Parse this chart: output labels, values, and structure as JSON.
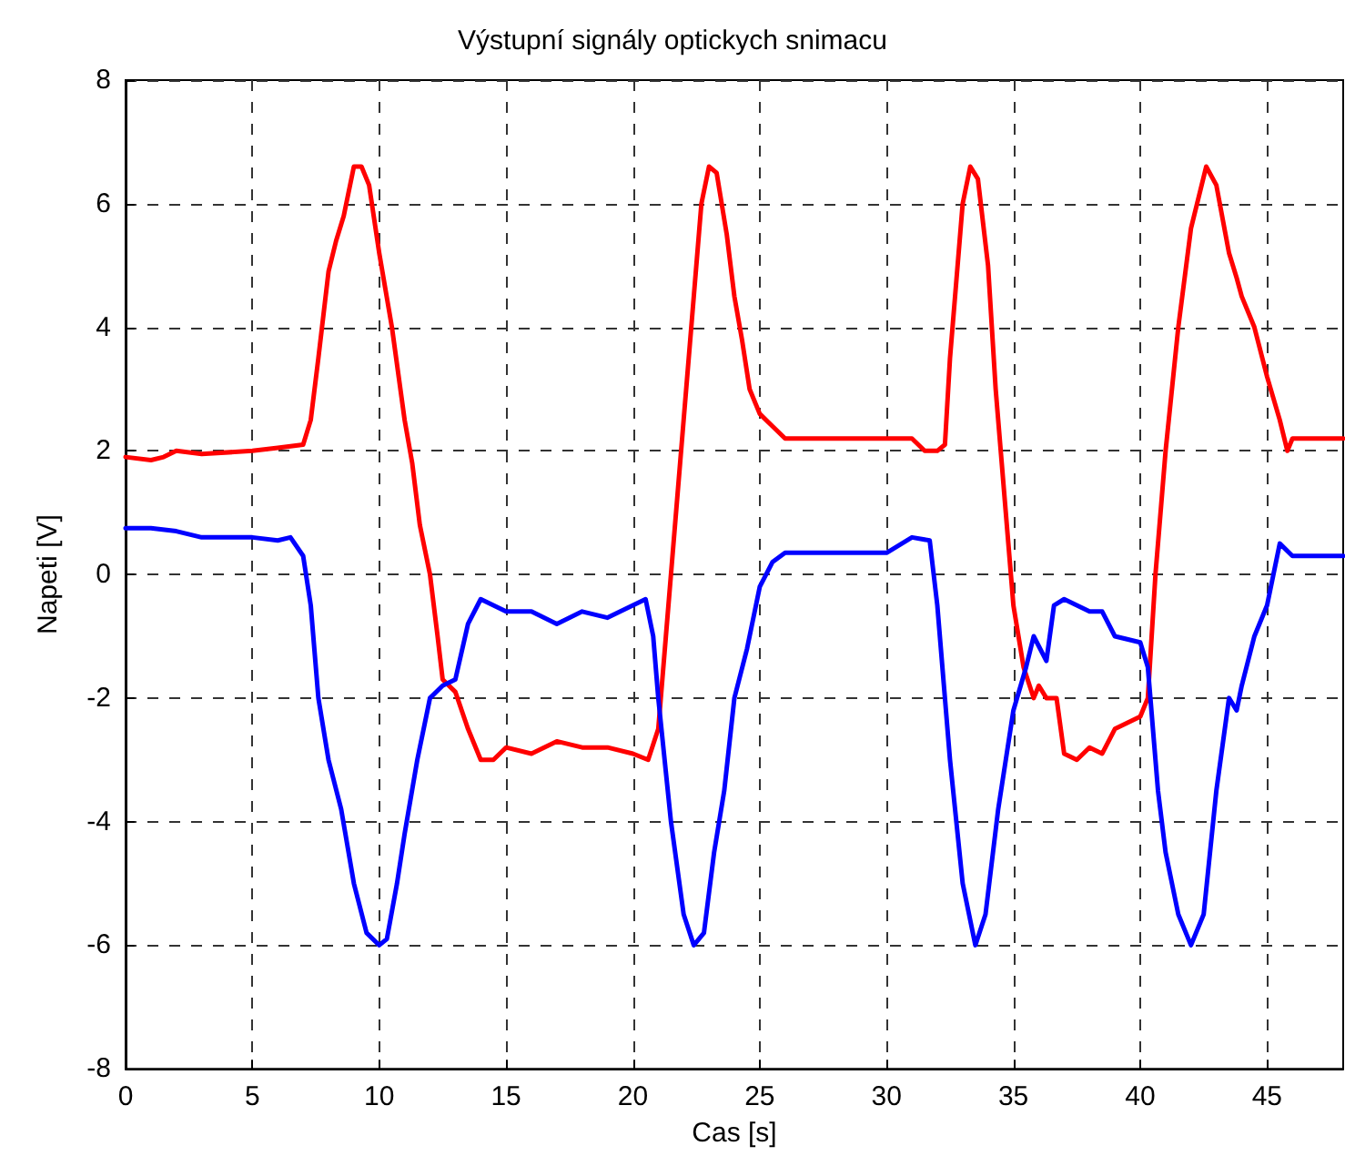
{
  "chart_data": {
    "type": "line",
    "title": "Výstupní signály optickych snimacu",
    "xlabel": "Cas [s]",
    "ylabel": "Napeti [V]",
    "xlim": [
      0,
      48
    ],
    "xticks": [
      0,
      5,
      10,
      15,
      20,
      25,
      30,
      35,
      40,
      45
    ],
    "ylim": [
      -8,
      8
    ],
    "yticks": [
      -8,
      -6,
      -4,
      -2,
      0,
      2,
      4,
      6,
      8
    ],
    "grid": true,
    "marker": "none",
    "line_style": "solid",
    "series": [
      {
        "color": "#ff0000",
        "x": [
          0,
          1,
          1.5,
          2,
          3,
          5,
          6,
          7,
          7.3,
          7.6,
          8,
          8.3,
          8.6,
          9,
          9.3,
          9.6,
          10,
          10.5,
          11,
          11.3,
          11.6,
          12,
          12.3,
          12.5,
          13,
          13.5,
          14,
          14.5,
          15,
          16,
          17,
          18,
          19,
          20,
          20.6,
          21,
          21.3,
          21.6,
          22,
          22.4,
          22.7,
          23,
          23.3,
          23.7,
          24,
          24.3,
          24.6,
          25,
          25.5,
          26,
          27,
          28,
          29,
          30,
          31,
          31.5,
          32,
          32.3,
          32.5,
          33,
          33.3,
          33.6,
          34,
          34.3,
          34.7,
          35,
          35.4,
          35.8,
          36,
          36.3,
          36.7,
          37,
          37.5,
          38,
          38.5,
          39,
          39.5,
          40,
          40.3,
          40.6,
          41,
          41.5,
          42,
          42.6,
          43,
          43.5,
          43.8,
          44,
          44.5,
          45,
          45.5,
          45.8,
          46,
          48
        ],
        "values": [
          1.9,
          1.85,
          1.9,
          2.0,
          1.95,
          2.0,
          2.05,
          2.1,
          2.5,
          3.5,
          4.9,
          5.4,
          5.8,
          6.6,
          6.6,
          6.3,
          5.2,
          4.0,
          2.5,
          1.8,
          0.8,
          0.0,
          -1.0,
          -1.7,
          -1.9,
          -2.5,
          -3.0,
          -3.0,
          -2.8,
          -2.9,
          -2.7,
          -2.8,
          -2.8,
          -2.9,
          -3.0,
          -2.5,
          -1.0,
          0.5,
          2.5,
          4.5,
          6.0,
          6.6,
          6.5,
          5.5,
          4.5,
          3.8,
          3.0,
          2.6,
          2.4,
          2.2,
          2.2,
          2.2,
          2.2,
          2.2,
          2.2,
          2.0,
          2.0,
          2.1,
          3.5,
          6.0,
          6.6,
          6.4,
          5.0,
          3.0,
          1.0,
          -0.5,
          -1.5,
          -2.0,
          -1.8,
          -2.0,
          -2.0,
          -2.9,
          -3.0,
          -2.8,
          -2.9,
          -2.5,
          -2.4,
          -2.3,
          -2.0,
          0.0,
          2.0,
          4.0,
          5.6,
          6.6,
          6.3,
          5.2,
          4.8,
          4.5,
          4.0,
          3.2,
          2.5,
          2.0,
          2.2,
          2.2
        ]
      },
      {
        "color": "#0000ff",
        "x": [
          0,
          1,
          2,
          3,
          5,
          6,
          6.5,
          7,
          7.3,
          7.6,
          8,
          8.5,
          9,
          9.5,
          10,
          10.3,
          10.7,
          11,
          11.5,
          12,
          12.5,
          13,
          13.5,
          14,
          14.5,
          15,
          16,
          17,
          18,
          19,
          20,
          20.5,
          20.8,
          21,
          21.5,
          22,
          22.4,
          22.8,
          23.2,
          23.6,
          24,
          24.5,
          25,
          25.5,
          26,
          28,
          30,
          31,
          31.7,
          32,
          32.5,
          33,
          33.5,
          33.9,
          34.4,
          35,
          35.5,
          35.8,
          36.3,
          36.6,
          37,
          38,
          38.5,
          39,
          40,
          40.3,
          40.7,
          41,
          41.5,
          42,
          42.5,
          43,
          43.5,
          43.8,
          44,
          44.5,
          45,
          45.5,
          46,
          48
        ],
        "values": [
          0.75,
          0.75,
          0.7,
          0.6,
          0.6,
          0.55,
          0.6,
          0.3,
          -0.5,
          -2.0,
          -3.0,
          -3.8,
          -5.0,
          -5.8,
          -6.0,
          -5.9,
          -5.0,
          -4.2,
          -3.0,
          -2.0,
          -1.8,
          -1.7,
          -0.8,
          -0.4,
          -0.5,
          -0.6,
          -0.6,
          -0.8,
          -0.6,
          -0.7,
          -0.5,
          -0.4,
          -1.0,
          -2.0,
          -4.0,
          -5.5,
          -6.0,
          -5.8,
          -4.5,
          -3.5,
          -2.0,
          -1.2,
          -0.2,
          0.2,
          0.35,
          0.35,
          0.35,
          0.6,
          0.55,
          -0.5,
          -3.0,
          -5.0,
          -6.0,
          -5.5,
          -3.8,
          -2.2,
          -1.5,
          -1.0,
          -1.4,
          -0.5,
          -0.4,
          -0.6,
          -0.6,
          -1.0,
          -1.1,
          -1.5,
          -3.5,
          -4.5,
          -5.5,
          -6.0,
          -5.5,
          -3.5,
          -2.0,
          -2.2,
          -1.8,
          -1.0,
          -0.5,
          0.5,
          0.3,
          0.3
        ]
      }
    ]
  }
}
